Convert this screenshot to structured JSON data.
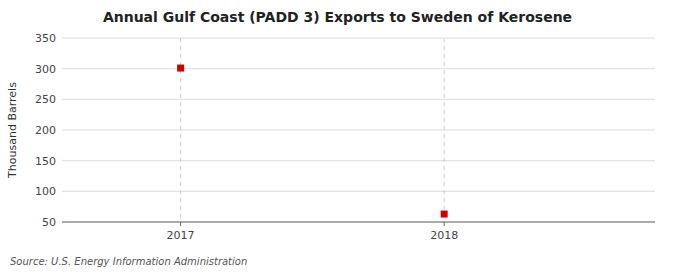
{
  "chart_data": {
    "type": "scatter",
    "title": "Annual Gulf Coast (PADD 3) Exports to Sweden of Kerosene",
    "ylabel": "Thousand Barrels",
    "annotations": [
      "Source: U.S. Energy Information Administration"
    ],
    "x": [
      2017,
      2018
    ],
    "values": [
      301,
      63
    ],
    "color": "#cc0000",
    "marker": "square",
    "xlim": [
      2016.55,
      2018.8
    ],
    "xticks": [
      2017,
      2018
    ],
    "ylim": [
      50,
      350
    ],
    "yticks": [
      50,
      100,
      150,
      200,
      250,
      300,
      350
    ],
    "grid": true
  }
}
